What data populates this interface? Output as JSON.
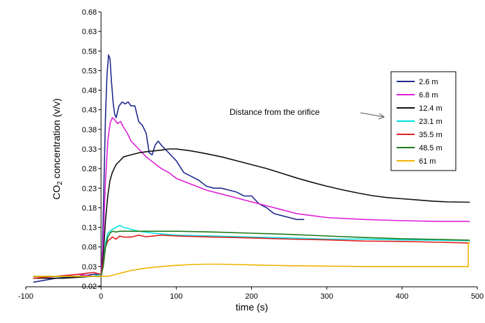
{
  "chart_data": {
    "type": "line",
    "xlabel": "time (s)",
    "ylabel_main": "CO",
    "ylabel_sub": "2",
    "ylabel_rest": " concentration (v/v)",
    "xlim": [
      -100,
      500
    ],
    "ylim": [
      -0.02,
      0.68
    ],
    "x_ticks": [
      -100,
      0,
      100,
      200,
      300,
      400,
      500
    ],
    "x_tick_labels": [
      "-100",
      "0",
      "100",
      "200",
      "300",
      "400",
      "500"
    ],
    "y_ticks": [
      -0.02,
      0.03,
      0.08,
      0.13,
      0.18,
      0.23,
      0.28,
      0.33,
      0.38,
      0.43,
      0.48,
      0.53,
      0.58,
      0.63,
      0.68
    ],
    "y_tick_labels": [
      "-0.02",
      "0.03",
      "0.08",
      "0.13",
      "0.18",
      "0.23",
      "0.28",
      "0.33",
      "0.38",
      "0.43",
      "0.48",
      "0.53",
      "0.58",
      "0.63",
      "0.68"
    ],
    "grid": false,
    "legend_position": "right",
    "annotation": "Distance from the orifice",
    "series": [
      {
        "name": "2.6 m",
        "color": "#1f2a8c",
        "x": [
          -90,
          -60,
          -30,
          -10,
          0,
          2,
          4,
          6,
          8,
          10,
          12,
          14,
          16,
          18,
          20,
          24,
          28,
          32,
          36,
          40,
          45,
          50,
          55,
          60,
          64,
          68,
          72,
          76,
          80,
          85,
          90,
          95,
          100,
          110,
          120,
          130,
          140,
          150,
          160,
          170,
          180,
          190,
          200,
          210,
          220,
          230,
          240,
          250,
          260,
          270
        ],
        "y": [
          -0.01,
          0.0,
          0.005,
          0.01,
          0.01,
          0.08,
          0.25,
          0.42,
          0.52,
          0.57,
          0.56,
          0.5,
          0.45,
          0.42,
          0.41,
          0.44,
          0.45,
          0.445,
          0.45,
          0.44,
          0.44,
          0.4,
          0.39,
          0.37,
          0.32,
          0.315,
          0.34,
          0.35,
          0.34,
          0.33,
          0.32,
          0.31,
          0.3,
          0.27,
          0.26,
          0.25,
          0.235,
          0.23,
          0.23,
          0.225,
          0.22,
          0.21,
          0.21,
          0.19,
          0.18,
          0.165,
          0.16,
          0.155,
          0.15,
          0.15
        ]
      },
      {
        "name": "6.8 m",
        "color": "#e020d8",
        "x": [
          -90,
          -60,
          -30,
          -10,
          0,
          3,
          6,
          9,
          12,
          15,
          18,
          22,
          26,
          30,
          35,
          40,
          50,
          60,
          70,
          80,
          90,
          100,
          120,
          140,
          160,
          180,
          200,
          220,
          240,
          260,
          280,
          300,
          350,
          400,
          450,
          490
        ],
        "y": [
          0.0,
          0.005,
          0.01,
          0.005,
          0.01,
          0.1,
          0.25,
          0.35,
          0.395,
          0.41,
          0.405,
          0.395,
          0.4,
          0.385,
          0.37,
          0.35,
          0.33,
          0.31,
          0.295,
          0.28,
          0.27,
          0.255,
          0.24,
          0.225,
          0.215,
          0.205,
          0.195,
          0.185,
          0.175,
          0.165,
          0.16,
          0.155,
          0.15,
          0.147,
          0.145,
          0.145
        ]
      },
      {
        "name": "12.4 m",
        "color": "#111111",
        "x": [
          -90,
          -50,
          -10,
          0,
          3,
          6,
          9,
          12,
          15,
          20,
          25,
          30,
          40,
          50,
          60,
          70,
          80,
          90,
          100,
          120,
          140,
          160,
          180,
          200,
          220,
          240,
          260,
          280,
          300,
          320,
          340,
          360,
          380,
          400,
          420,
          440,
          460,
          490
        ],
        "y": [
          0.0,
          0.0,
          0.005,
          0.005,
          0.06,
          0.15,
          0.21,
          0.25,
          0.27,
          0.29,
          0.3,
          0.31,
          0.315,
          0.32,
          0.323,
          0.325,
          0.327,
          0.33,
          0.33,
          0.325,
          0.318,
          0.31,
          0.3,
          0.29,
          0.28,
          0.268,
          0.256,
          0.245,
          0.235,
          0.226,
          0.218,
          0.211,
          0.206,
          0.203,
          0.2,
          0.197,
          0.195,
          0.194
        ]
      },
      {
        "name": "23.1 m",
        "color": "#00e0e0",
        "x": [
          -90,
          -10,
          0,
          3,
          6,
          9,
          12,
          15,
          20,
          25,
          30,
          40,
          50,
          70,
          100,
          150,
          200,
          250,
          300,
          350,
          400,
          450,
          490
        ],
        "y": [
          0.005,
          0.005,
          0.01,
          0.04,
          0.09,
          0.115,
          0.12,
          0.125,
          0.13,
          0.135,
          0.13,
          0.125,
          0.12,
          0.115,
          0.11,
          0.108,
          0.105,
          0.103,
          0.1,
          0.1,
          0.098,
          0.097,
          0.096
        ]
      },
      {
        "name": "35.5 m",
        "color": "#e02020",
        "x": [
          -90,
          -60,
          -30,
          -10,
          0,
          3,
          6,
          9,
          12,
          15,
          20,
          25,
          30,
          40,
          50,
          60,
          80,
          100,
          150,
          200,
          250,
          300,
          350,
          400,
          450,
          490
        ],
        "y": [
          0.0,
          0.005,
          0.01,
          0.015,
          0.01,
          0.04,
          0.08,
          0.095,
          0.1,
          0.105,
          0.1,
          0.108,
          0.105,
          0.105,
          0.11,
          0.106,
          0.11,
          0.108,
          0.105,
          0.103,
          0.1,
          0.098,
          0.095,
          0.094,
          0.092,
          0.09
        ]
      },
      {
        "name": "48.5 m",
        "color": "#1e7a1e",
        "x": [
          -90,
          -10,
          0,
          3,
          6,
          9,
          12,
          15,
          20,
          25,
          30,
          40,
          60,
          80,
          100,
          150,
          200,
          250,
          300,
          350,
          400,
          450,
          490
        ],
        "y": [
          0.005,
          0.005,
          0.005,
          0.03,
          0.08,
          0.105,
          0.115,
          0.12,
          0.118,
          0.12,
          0.12,
          0.12,
          0.12,
          0.12,
          0.12,
          0.118,
          0.115,
          0.112,
          0.108,
          0.104,
          0.101,
          0.099,
          0.097
        ]
      },
      {
        "name": "61 m",
        "color": "#f0b400",
        "x": [
          -90,
          -10,
          0,
          10,
          20,
          30,
          40,
          50,
          60,
          80,
          100,
          120,
          140,
          160,
          180,
          200,
          250,
          300,
          350,
          400,
          450,
          488,
          488,
          490
        ],
        "y": [
          0.005,
          0.005,
          0.005,
          0.005,
          0.01,
          0.015,
          0.02,
          0.023,
          0.026,
          0.03,
          0.033,
          0.035,
          0.036,
          0.036,
          0.035,
          0.034,
          0.032,
          0.031,
          0.03,
          0.03,
          0.03,
          0.03,
          0.09,
          0.09
        ]
      }
    ]
  }
}
